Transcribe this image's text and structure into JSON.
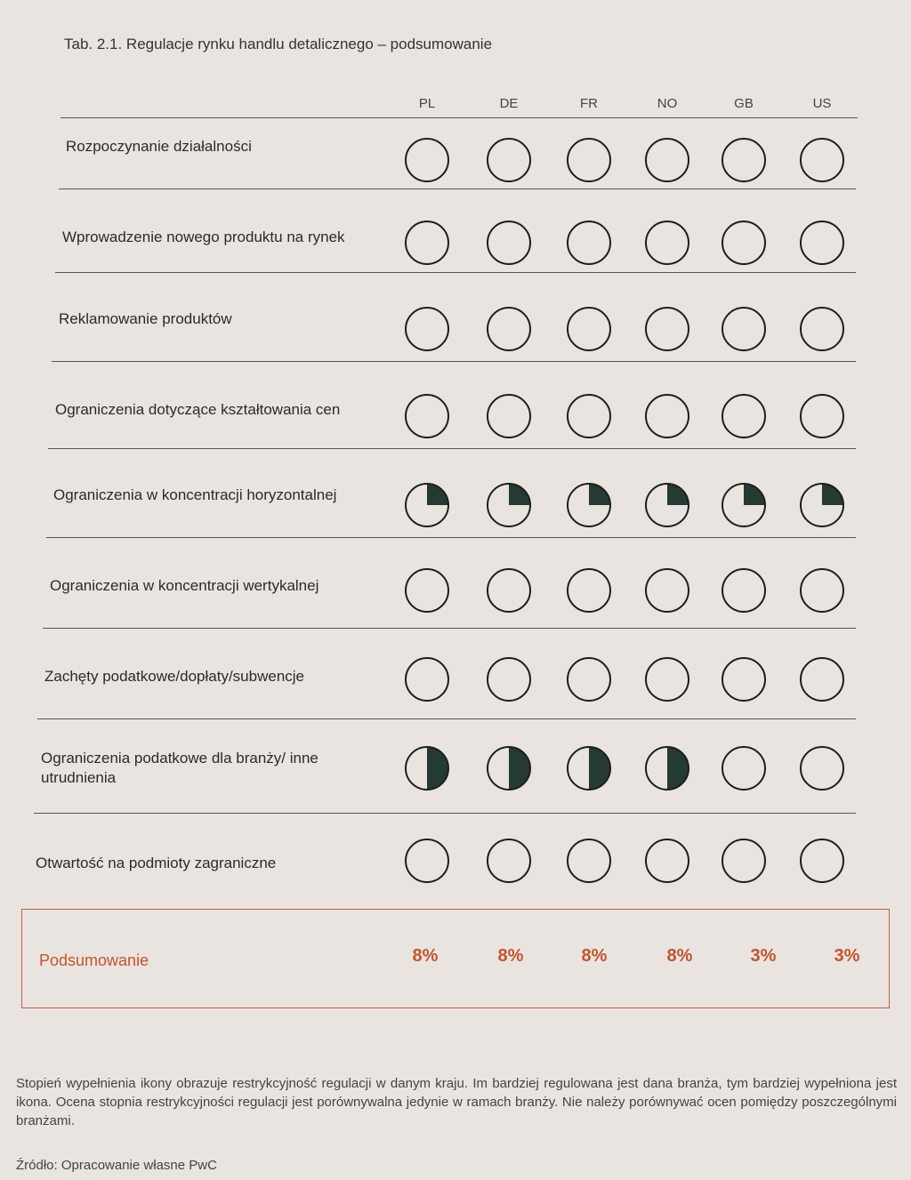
{
  "title": "Tab. 2.1. Regulacje rynku handlu detalicznego – podsumowanie",
  "columns": [
    "PL",
    "DE",
    "FR",
    "NO",
    "GB",
    "US"
  ],
  "rows": [
    {
      "label": "Rozpoczynanie działalności",
      "fill": [
        0,
        0,
        0,
        0,
        0,
        0
      ]
    },
    {
      "label": "Wprowadzenie nowego produktu na rynek",
      "fill": [
        0,
        0,
        0,
        0,
        0,
        0
      ]
    },
    {
      "label": "Reklamowanie produktów",
      "fill": [
        0,
        0,
        0,
        0,
        0,
        0
      ]
    },
    {
      "label": "Ograniczenia dotyczące kształtowania cen",
      "fill": [
        0,
        0,
        0,
        0,
        0,
        0
      ]
    },
    {
      "label": "Ograniczenia w koncentracji horyzontalnej",
      "fill": [
        0.25,
        0.25,
        0.25,
        0.25,
        0.25,
        0.25
      ]
    },
    {
      "label": "Ograniczenia w koncentracji wertykalnej",
      "fill": [
        0,
        0,
        0,
        0,
        0,
        0
      ]
    },
    {
      "label": "Zachęty podatkowe/dopłaty/subwencje",
      "fill": [
        0,
        0,
        0,
        0,
        0,
        0
      ]
    },
    {
      "label": "Ograniczenia podatkowe dla branży/ inne utrudnienia",
      "fill": [
        0.5,
        0.5,
        0.5,
        0.5,
        0,
        0
      ]
    },
    {
      "label": "Otwartość na podmioty zagraniczne",
      "fill": [
        0,
        0,
        0,
        0,
        0,
        0
      ]
    }
  ],
  "summary": {
    "label": "Podsumowanie",
    "values": [
      "8%",
      "8%",
      "8%",
      "8%",
      "3%",
      "3%"
    ]
  },
  "note": "Stopień wypełnienia ikony obrazuje restrykcyjność regulacji w danym kraju. Im bardziej regulowana jest dana branża, tym bardziej wypełniona jest ikona. Ocena stopnia restrykcyjności regulacji jest porównywalna jedynie w ramach branży. Nie należy porównywać ocen pomiędzy poszczególnymi branżami.",
  "source": "Źródło: Opracowanie własne PwC",
  "colors": {
    "fill": "#243a33",
    "stroke": "#1e1e1e",
    "accent": "#c2552e"
  }
}
